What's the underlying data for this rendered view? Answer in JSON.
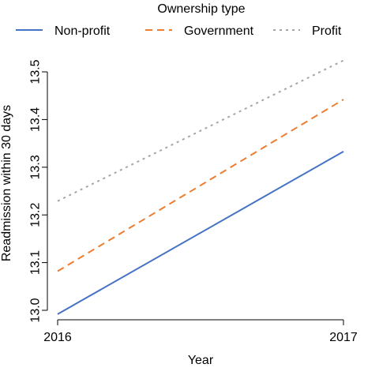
{
  "chart_data": {
    "type": "line",
    "title": "",
    "xlabel": "Year",
    "ylabel": "Readmission within 30 days",
    "x": [
      2016,
      2017
    ],
    "x_tick_labels": [
      "2016",
      "2017"
    ],
    "y_ticks": [
      13.0,
      13.1,
      13.2,
      13.3,
      13.4,
      13.5
    ],
    "y_tick_labels": [
      "13.0",
      "13.1",
      "13.2",
      "13.3",
      "13.4",
      "13.5"
    ],
    "ylim": [
      12.98,
      13.535
    ],
    "grid": false,
    "legend": {
      "title": "Ownership type",
      "placement": "top"
    },
    "series": [
      {
        "name": "Non-profit",
        "values": [
          12.992,
          13.333
        ],
        "color": "#4472C4",
        "dash": "solid"
      },
      {
        "name": "Government",
        "values": [
          13.082,
          13.442
        ],
        "color": "#ED7D31",
        "dash": "dashed"
      },
      {
        "name": "Profit",
        "values": [
          13.229,
          13.524
        ],
        "color": "#A5A5A5",
        "dash": "dotted"
      }
    ]
  }
}
